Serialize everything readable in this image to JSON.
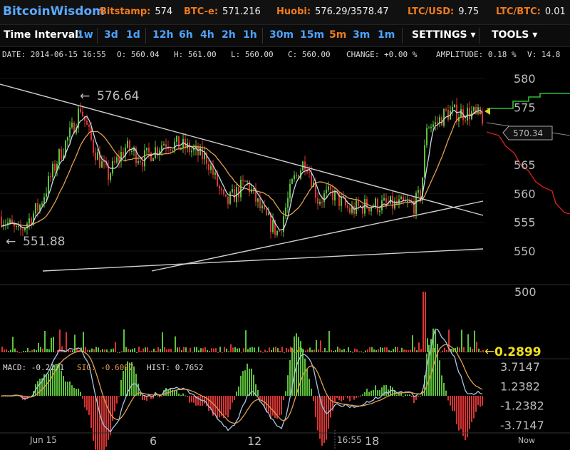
{
  "header": {
    "logo": "BitcoinWisdom",
    "tickers": [
      {
        "label": "Bitstamp:",
        "value": "574"
      },
      {
        "label": "BTC-e:",
        "value": "571.216"
      },
      {
        "label": "Huobi:",
        "value": "576.29/3578.47"
      },
      {
        "label": "LTC/USD:",
        "value": "9.75"
      },
      {
        "label": "LTC/BTC:",
        "value": "0.01"
      }
    ]
  },
  "toolbar": {
    "interval_label": "Time Interval:",
    "intervals": [
      "1w",
      "3d",
      "1d",
      "12h",
      "6h",
      "4h",
      "2h",
      "1h",
      "30m",
      "15m",
      "5m",
      "3m",
      "1m"
    ],
    "active_interval": "5m",
    "settings_label": "SETTINGS",
    "tools_label": "TOOLS"
  },
  "info": {
    "date": "DATE: 2014-06-15 16:55",
    "open": "O: 560.04",
    "high": "H: 561.00",
    "low": "L: 560.00",
    "close": "C: 560.00",
    "change": "CHANGE: +0.00 %",
    "amplitude": "AMPLITUDE: 0.18 %",
    "volume": "V: 14.8"
  },
  "chart_data": [
    {
      "type": "candlestick",
      "y_ticks": [
        "580",
        "575",
        "570",
        "565",
        "560",
        "555",
        "550"
      ],
      "ylim": [
        547,
        582
      ],
      "annotations": {
        "high": "576.64",
        "low": "551.88",
        "price_marker": "570.34"
      },
      "colors": {
        "up": "#5ec23d",
        "down": "#d93434",
        "ma_fast": "#c8d8e8",
        "ma_slow": "#e0a050",
        "trend": "#cccccc"
      }
    },
    {
      "type": "bar",
      "name": "volume",
      "y_ticks": [
        "500"
      ],
      "current_label": "0.2899"
    },
    {
      "type": "macd",
      "label_macd": "MACD: -0.2271",
      "label_sig": "SIG: -0.6097",
      "label_hist": "HIST: 0.7652",
      "y_ticks": [
        "3.7147",
        "1.2382",
        "-1.2382",
        "-3.7147"
      ]
    }
  ],
  "x_axis": {
    "labels": [
      "Jun 15",
      "6",
      "12",
      "16:55",
      "18",
      "Now"
    ]
  }
}
